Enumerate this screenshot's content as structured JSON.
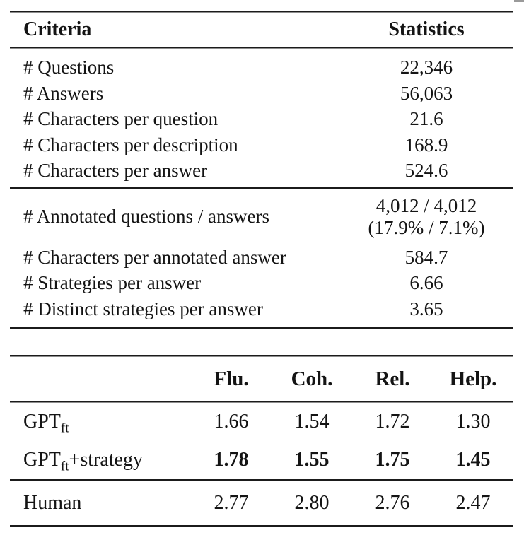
{
  "table1": {
    "header": {
      "criteria": "Criteria",
      "statistics": "Statistics"
    },
    "group1": [
      {
        "label": "# Questions",
        "value": "22,346"
      },
      {
        "label": "# Answers",
        "value": "56,063"
      },
      {
        "label": "# Characters per question",
        "value": "21.6"
      },
      {
        "label": "# Characters per description",
        "value": "168.9"
      },
      {
        "label": "# Characters per answer",
        "value": "524.6"
      }
    ],
    "group2": {
      "annotated": {
        "label": "# Annotated questions / answers",
        "value_line1": "4,012 / 4,012",
        "value_line2": "(17.9% / 7.1%)"
      },
      "rows": [
        {
          "label": "# Characters per annotated answer",
          "value": "584.7"
        },
        {
          "label": "# Strategies per answer",
          "value": "6.66"
        },
        {
          "label": "# Distinct strategies per answer",
          "value": "3.65"
        }
      ]
    }
  },
  "table2": {
    "header": {
      "flu": "Flu.",
      "coh": "Coh.",
      "rel": "Rel.",
      "help": "Help."
    },
    "rows": [
      {
        "name": "GPT",
        "sub": "ft",
        "suffix": "",
        "flu": "1.66",
        "coh": "1.54",
        "rel": "1.72",
        "help": "1.30"
      },
      {
        "name": "GPT",
        "sub": "ft",
        "suffix": "+strategy",
        "flu": "1.78",
        "coh": "1.55",
        "rel": "1.75",
        "help": "1.45"
      },
      {
        "name": "Human",
        "sub": "",
        "suffix": "",
        "flu": "2.77",
        "coh": "2.80",
        "rel": "2.76",
        "help": "2.47"
      }
    ]
  }
}
